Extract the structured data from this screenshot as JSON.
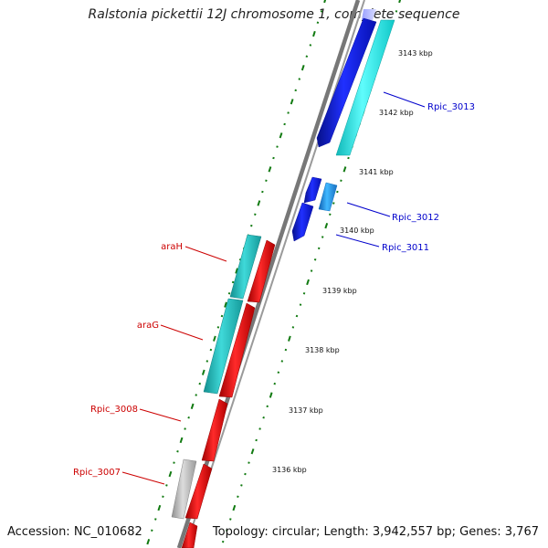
{
  "title": "Ralstonia pickettii 12J chromosome 1, complete sequence",
  "footer": {
    "accession": "Accession: NC_010682",
    "topology": "Topology: circular; Length: 3,942,557 bp; Genes: 3,767"
  },
  "ruler_labels": [
    "3143 kbp",
    "3142 kbp",
    "3141 kbp",
    "3140 kbp",
    "3139 kbp",
    "3138 kbp",
    "3137 kbp",
    "3136 kbp"
  ],
  "gene_labels": {
    "right": [
      "Rpic_3013",
      "Rpic_3012",
      "Rpic_3011"
    ],
    "left": [
      "araH",
      "araG",
      "Rpic_3008",
      "Rpic_3007"
    ]
  },
  "colors": {
    "backbone": "#8a8a8a",
    "tick_green": "#117a11",
    "forward_label": "#0000cc",
    "reverse_label": "#cc0000",
    "gene_blue": "#0a14e0",
    "gene_cyan": "#19f0f0",
    "gene_teal": "#1fbfbf",
    "gene_red": "#f20d0d",
    "gene_grey": "#b5b5b5",
    "gene_lightblue": "#2a9ff0"
  }
}
